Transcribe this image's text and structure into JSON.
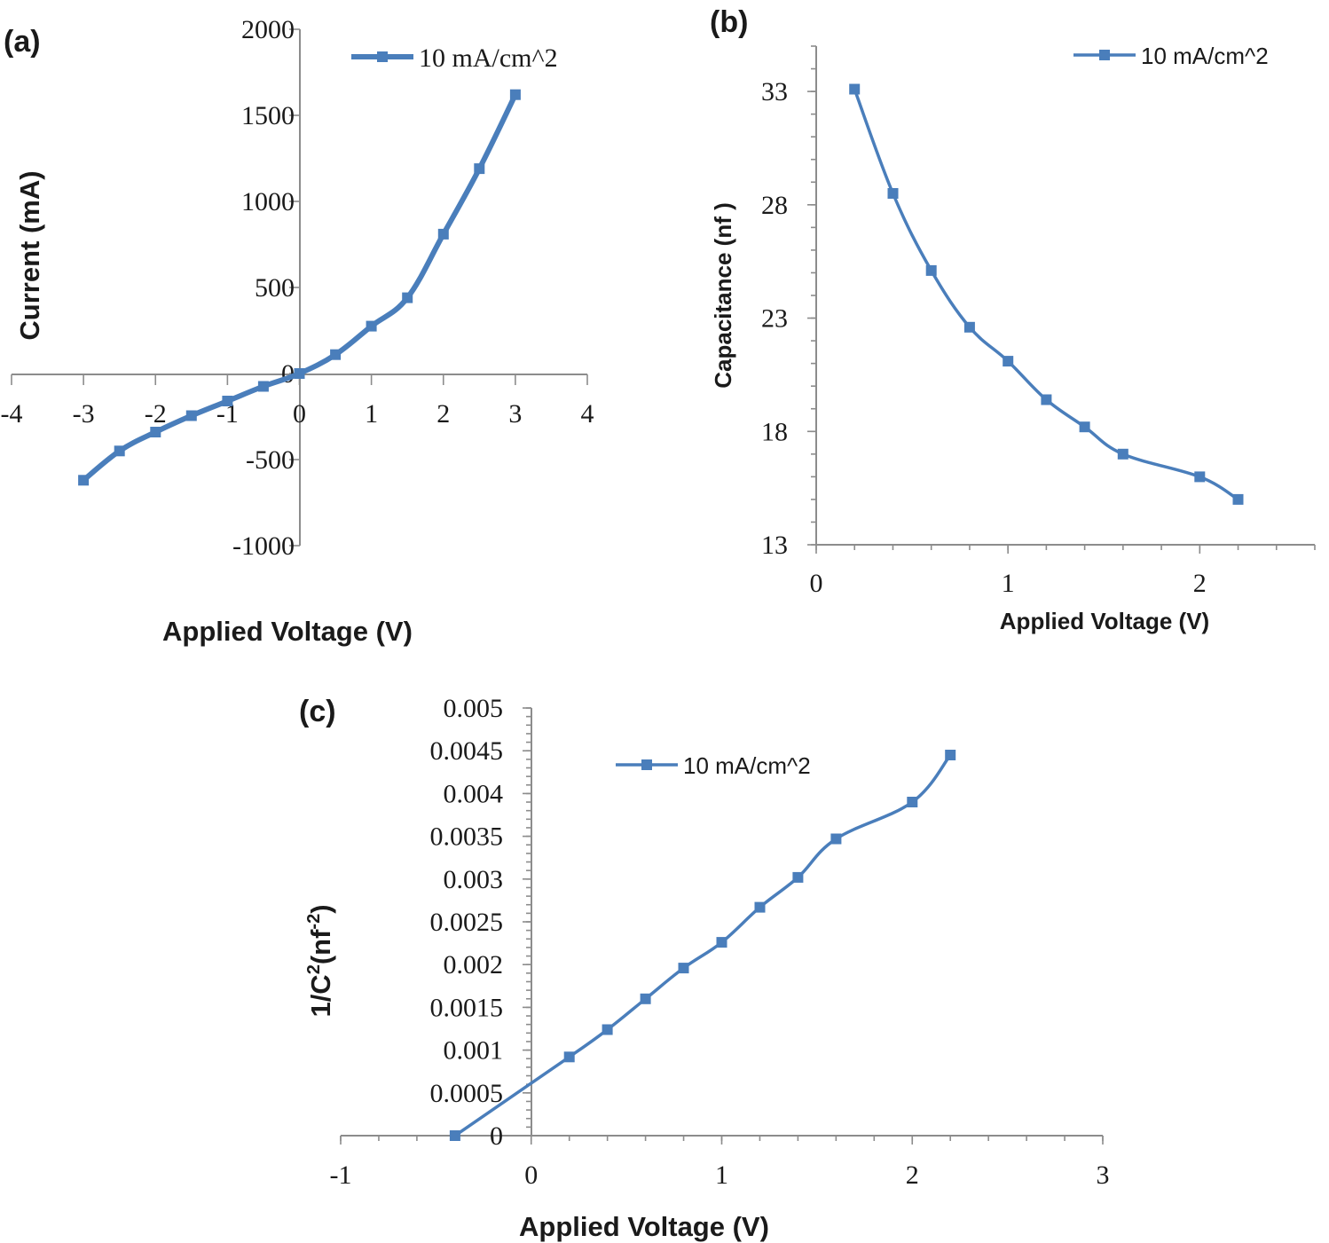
{
  "chart_data": [
    {
      "type": "line",
      "panel_label": "(a)",
      "xlabel": "Applied Voltage (V)",
      "ylabel": "Current (mA)",
      "xlim": [
        -4,
        4
      ],
      "ylim": [
        -1000,
        2000
      ],
      "x_ticks": [
        "-4",
        "-3",
        "-2",
        "-1",
        "0",
        "1",
        "2",
        "3",
        "4"
      ],
      "y_ticks": [
        "-1000",
        "-500",
        "0",
        "500",
        "1000",
        "1500",
        "2000"
      ],
      "legend_position": "top-right",
      "series": [
        {
          "name": "10 mA/cm^2",
          "color": "#4a7ebb",
          "x": [
            -3,
            -2.5,
            -2,
            -1.5,
            -1,
            -0.5,
            0,
            0.5,
            1,
            1.5,
            2,
            2.5,
            3
          ],
          "y": [
            -620,
            -450,
            -340,
            -245,
            -160,
            -75,
            0,
            110,
            275,
            440,
            810,
            1190,
            1620
          ]
        }
      ]
    },
    {
      "type": "line",
      "panel_label": "(b)",
      "xlabel": "Applied Voltage (V)",
      "ylabel": "Capacitance (nf )",
      "xlim": [
        0,
        2.6
      ],
      "ylim": [
        13,
        35
      ],
      "x_ticks": [
        "0",
        "1",
        "2"
      ],
      "y_ticks": [
        "13",
        "18",
        "23",
        "28",
        "33"
      ],
      "legend_position": "top-right",
      "series": [
        {
          "name": "10 mA/cm^2",
          "color": "#4a7ebb",
          "x": [
            0.2,
            0.4,
            0.6,
            0.8,
            1.0,
            1.2,
            1.4,
            1.6,
            2.0,
            2.2
          ],
          "y": [
            33.1,
            28.5,
            25.1,
            22.6,
            21.1,
            19.4,
            18.2,
            17.0,
            16.0,
            15.0
          ]
        }
      ]
    },
    {
      "type": "line",
      "panel_label": "(c)",
      "xlabel": "Applied Voltage (V)",
      "ylabel_main": "1/C",
      "ylabel_sup1": "2",
      "ylabel_mid": "(nf",
      "ylabel_sup2": "-2",
      "ylabel_end": ")",
      "xlim": [
        -1,
        3
      ],
      "ylim": [
        0,
        0.005
      ],
      "x_ticks": [
        "-1",
        "0",
        "1",
        "2",
        "3"
      ],
      "y_ticks": [
        "0",
        "0.0005",
        "0.001",
        "0.0015",
        "0.002",
        "0.0025",
        "0.003",
        "0.0035",
        "0.004",
        "0.0045",
        "0.005"
      ],
      "legend_position": "top-left",
      "series": [
        {
          "name": "10 mA/cm^2",
          "color": "#4a7ebb",
          "x": [
            -0.4,
            0.2,
            0.4,
            0.6,
            0.8,
            1.0,
            1.2,
            1.4,
            1.6,
            2.0,
            2.2
          ],
          "y": [
            0.0,
            0.00092,
            0.00124,
            0.0016,
            0.00196,
            0.00226,
            0.00267,
            0.00302,
            0.00347,
            0.0039,
            0.00445
          ]
        }
      ]
    }
  ]
}
